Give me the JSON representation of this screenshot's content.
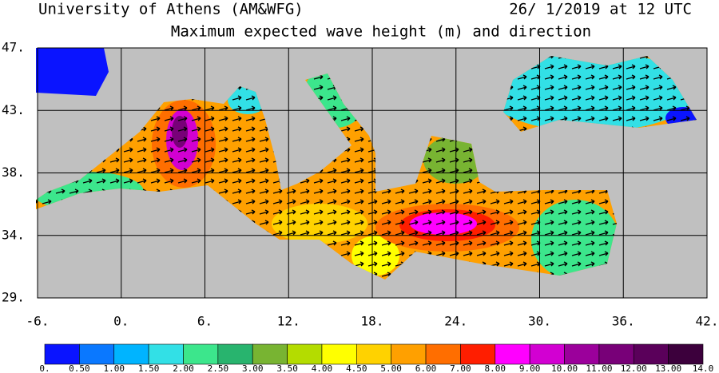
{
  "header": {
    "left": "University of Athens (AM&WFG)",
    "right": "26/ 1/2019 at 12 UTC"
  },
  "title": "Maximum expected wave height (m) and direction",
  "map": {
    "latitude_labels": [
      "47.",
      "43.",
      "38.",
      "34.",
      "29."
    ],
    "longitude_labels": [
      "-6.",
      "0.",
      "6.",
      "12.",
      "18.",
      "24.",
      "30.",
      "36.",
      "42."
    ]
  },
  "legend": {
    "labels": [
      "0.",
      "0.50",
      "1.00",
      "1.50",
      "2.00",
      "2.50",
      "3.00",
      "3.50",
      "4.00",
      "4.50",
      "5.00",
      "6.00",
      "7.00",
      "8.00",
      "9.00",
      "10.00",
      "11.00",
      "12.00",
      "13.00",
      "14.0"
    ],
    "colors": [
      "#0a14ff",
      "#0a78ff",
      "#00b4ff",
      "#32e0e6",
      "#3ce68c",
      "#28b46e",
      "#78b432",
      "#b4dc00",
      "#ffff00",
      "#ffd200",
      "#ffa000",
      "#ff6e00",
      "#ff1e00",
      "#ff00ff",
      "#d200d2",
      "#9b009b",
      "#780078",
      "#5a005a",
      "#3c003c"
    ]
  }
}
